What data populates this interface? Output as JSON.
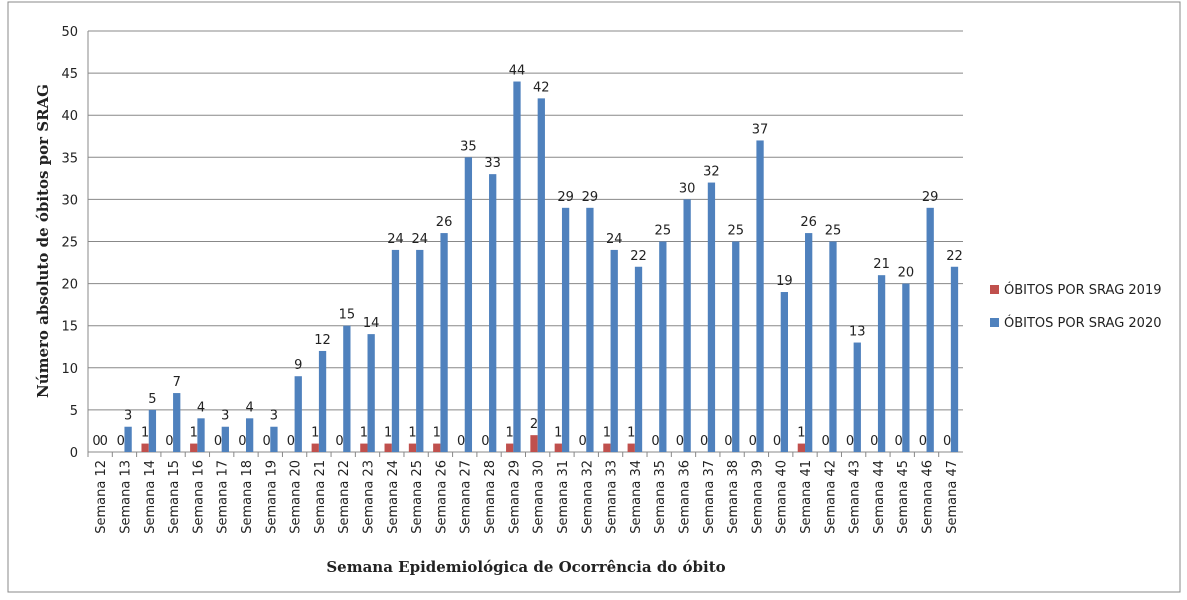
{
  "chart_data": {
    "type": "bar",
    "y_label": "Número absoluto de óbitos por SRAG",
    "x_label": "Semana Epidemiológica de Ocorrência do óbito",
    "categories": [
      "Semana 12",
      "Semana 13",
      "Semana 14",
      "Semana 15",
      "Semana 16",
      "Semana 17",
      "Semana 18",
      "Semana 19",
      "Semana 20",
      "Semana 21",
      "Semana 22",
      "Semana 23",
      "Semana 24",
      "Semana 25",
      "Semana 26",
      "Semana 27",
      "Semana 28",
      "Semana 29",
      "Semana 30",
      "Semana 31",
      "Semana 32",
      "Semana 33",
      "Semana 34",
      "Semana 35",
      "Semana 36",
      "Semana 37",
      "Semana 38",
      "Semana 39",
      "Semana 40",
      "Semana 41",
      "Semana 42",
      "Semana 43",
      "Semana 44",
      "Semana 45",
      "Semana 46",
      "Semana 47"
    ],
    "series": [
      {
        "name": "ÓBITOS POR SRAG 2019",
        "color": "#c0504d",
        "values": [
          0,
          0,
          1,
          0,
          1,
          0,
          0,
          0,
          0,
          1,
          0,
          1,
          1,
          1,
          1,
          0,
          0,
          1,
          2,
          1,
          0,
          1,
          1,
          0,
          0,
          0,
          0,
          0,
          0,
          1,
          0,
          0,
          0,
          0,
          0,
          0
        ]
      },
      {
        "name": "ÓBITOS POR SRAG 2020",
        "color": "#4f81bd",
        "values": [
          0,
          3,
          5,
          7,
          4,
          3,
          4,
          3,
          9,
          12,
          15,
          14,
          24,
          24,
          26,
          35,
          33,
          44,
          42,
          29,
          29,
          24,
          22,
          25,
          30,
          32,
          25,
          37,
          19,
          26,
          25,
          13,
          21,
          20,
          29,
          22
        ]
      }
    ],
    "ylim": [
      0,
      50
    ],
    "yticks": [
      0,
      5,
      10,
      15,
      20,
      25,
      30,
      35,
      40,
      45,
      50
    ],
    "grid": true,
    "legend": "right"
  }
}
